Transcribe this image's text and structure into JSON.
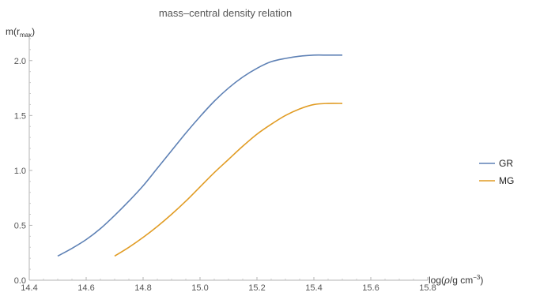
{
  "chart_data": {
    "type": "line",
    "title": "mass–central density relation",
    "xlabel": "log(ρ/g cm⁻³)",
    "ylabel": "m(r_max)",
    "ylabel_base": "m(r",
    "ylabel_sub": "max",
    "ylabel_close": ")",
    "xlabel_pre": "log(",
    "xlabel_rho": "ρ",
    "xlabel_mid": "/g cm",
    "xlabel_sup": "−3",
    "xlabel_post": ")",
    "xlim": [
      14.4,
      15.8
    ],
    "ylim": [
      0.0,
      2.25
    ],
    "x_ticks": [
      "14.4",
      "14.6",
      "14.8",
      "15.0",
      "15.2",
      "15.4",
      "15.6",
      "15.8"
    ],
    "y_ticks": [
      "0.0",
      "0.5",
      "1.0",
      "1.5",
      "2.0"
    ],
    "legend_position": "right",
    "grid": false,
    "series": [
      {
        "name": "GR",
        "color": "#5e81b5",
        "x": [
          14.5,
          14.55,
          14.6,
          14.65,
          14.7,
          14.75,
          14.8,
          14.85,
          14.9,
          14.95,
          15.0,
          15.05,
          15.1,
          15.15,
          15.2,
          15.25,
          15.3,
          15.35,
          15.4,
          15.45,
          15.5
        ],
        "y": [
          0.22,
          0.29,
          0.37,
          0.47,
          0.59,
          0.72,
          0.86,
          1.02,
          1.18,
          1.34,
          1.49,
          1.63,
          1.75,
          1.85,
          1.93,
          1.99,
          2.02,
          2.04,
          2.05,
          2.05,
          2.05
        ]
      },
      {
        "name": "MG",
        "color": "#e19c24",
        "x": [
          14.7,
          14.75,
          14.8,
          14.85,
          14.9,
          14.95,
          15.0,
          15.05,
          15.1,
          15.15,
          15.2,
          15.25,
          15.3,
          15.35,
          15.4,
          15.45,
          15.5
        ],
        "y": [
          0.22,
          0.3,
          0.39,
          0.49,
          0.6,
          0.72,
          0.85,
          0.98,
          1.1,
          1.22,
          1.33,
          1.42,
          1.5,
          1.56,
          1.6,
          1.61,
          1.61
        ]
      }
    ]
  }
}
